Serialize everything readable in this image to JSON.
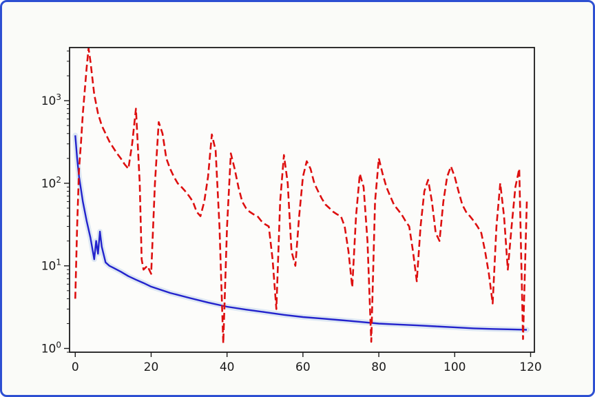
{
  "figure": {
    "background": "#fafbf8",
    "border_color": "#2d4fd2",
    "axes_background": "#fcfcfa",
    "spine_color": "#1a1a1a",
    "tick_color": "#1a1a1a",
    "label_color": "#1a1a1a"
  },
  "chart_data": {
    "type": "line",
    "title": "",
    "xlabel": "",
    "ylabel": "",
    "x_scale": "linear",
    "y_scale": "log",
    "xlim": [
      -1.5,
      121
    ],
    "ylim": [
      0.9,
      4400
    ],
    "grid": false,
    "legend": null,
    "xticks": [
      0,
      20,
      40,
      60,
      80,
      100,
      120
    ],
    "yticks": [
      {
        "value": 1,
        "base": "10",
        "exp": "0"
      },
      {
        "value": 10,
        "base": "10",
        "exp": "1"
      },
      {
        "value": 100,
        "base": "10",
        "exp": "2"
      },
      {
        "value": 1000,
        "base": "10",
        "exp": "3"
      }
    ],
    "series": [
      {
        "name": "solid-blue-converging-curve",
        "color": "#2222cc",
        "linestyle": "solid",
        "linewidth": 2.4,
        "halo_color": "#b8cfec",
        "x": [
          0,
          0.5,
          1,
          2,
          3,
          4,
          5,
          5.5,
          6,
          6.5,
          7,
          8,
          9,
          10,
          12,
          14,
          16,
          18,
          20,
          25,
          30,
          35,
          40,
          45,
          50,
          55,
          60,
          65,
          70,
          75,
          80,
          85,
          90,
          95,
          100,
          105,
          110,
          115,
          119
        ],
        "y": [
          380,
          200,
          120,
          60,
          35,
          22,
          12,
          20,
          14,
          26,
          17,
          11,
          10,
          9.5,
          8.5,
          7.5,
          6.8,
          6.2,
          5.6,
          4.7,
          4.1,
          3.6,
          3.2,
          2.95,
          2.75,
          2.55,
          2.4,
          2.3,
          2.2,
          2.1,
          2.0,
          1.95,
          1.9,
          1.85,
          1.8,
          1.75,
          1.72,
          1.7,
          1.68
        ]
      },
      {
        "name": "dashed-red-oscillating-curve",
        "color": "#dd0f0f",
        "linestyle": "dashed",
        "dash": "10 5",
        "linewidth": 2.6,
        "x": [
          0,
          0.5,
          1,
          1.5,
          2,
          3,
          3.5,
          4,
          5,
          6,
          7,
          8,
          9,
          10,
          11,
          12,
          13,
          14,
          15,
          16,
          17,
          17.5,
          18,
          19,
          20,
          21,
          22,
          23,
          24,
          25,
          26,
          27,
          28,
          29,
          30,
          31,
          32,
          33,
          34,
          35,
          36,
          37,
          38,
          39,
          40,
          41,
          42,
          43,
          44,
          45,
          46,
          47,
          48,
          49,
          50,
          51,
          52,
          53,
          54,
          55,
          56,
          57,
          58,
          59,
          60,
          61,
          62,
          63,
          64,
          65,
          66,
          67,
          68,
          69,
          70,
          71,
          72,
          73,
          74,
          75,
          76,
          77,
          78,
          79,
          80,
          81,
          82,
          83,
          84,
          85,
          86,
          87,
          88,
          89,
          90,
          91,
          92,
          93,
          94,
          95,
          96,
          97,
          98,
          99,
          100,
          101,
          102,
          103,
          104,
          105,
          106,
          107,
          108,
          109,
          110,
          111,
          112,
          113,
          114,
          115,
          116,
          117,
          118,
          119
        ],
        "y": [
          4,
          30,
          150,
          300,
          700,
          2500,
          4300,
          3000,
          1200,
          700,
          500,
          400,
          320,
          270,
          230,
          200,
          170,
          150,
          300,
          800,
          100,
          12,
          9,
          10,
          8,
          100,
          550,
          400,
          200,
          150,
          120,
          100,
          90,
          80,
          70,
          60,
          45,
          40,
          60,
          120,
          390,
          250,
          30,
          1.15,
          30,
          230,
          150,
          90,
          60,
          50,
          45,
          42,
          40,
          35,
          32,
          30,
          12,
          3,
          60,
          220,
          100,
          15,
          10,
          40,
          120,
          185,
          150,
          100,
          80,
          65,
          55,
          50,
          45,
          42,
          40,
          30,
          15,
          5.5,
          40,
          130,
          90,
          20,
          1.2,
          60,
          200,
          130,
          90,
          70,
          55,
          48,
          42,
          35,
          30,
          15,
          6.5,
          30,
          80,
          110,
          60,
          25,
          20,
          60,
          120,
          160,
          120,
          80,
          55,
          45,
          40,
          35,
          30,
          25,
          15,
          8,
          3.5,
          30,
          100,
          40,
          9,
          30,
          90,
          150,
          1.3,
          60
        ]
      }
    ]
  }
}
